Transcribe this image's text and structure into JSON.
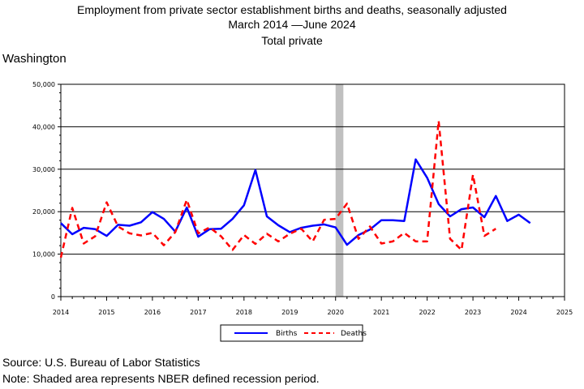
{
  "title": {
    "line1": "Employment from private sector establishment births and deaths, seasonally adjusted",
    "line2": "March 2014 —June 2024",
    "line3": "Total private"
  },
  "region": "Washington",
  "source": "Source: U.S. Bureau of Labor Statistics",
  "note": "Note: Shaded area represents NBER defined recession period.",
  "chart_data": {
    "type": "line",
    "ylim": [
      0,
      50000
    ],
    "xlim": [
      2014,
      2025
    ],
    "yticks": [
      0,
      10000,
      20000,
      30000,
      40000,
      50000
    ],
    "ytick_labels": [
      "0",
      "10,000",
      "20,000",
      "30,000",
      "40,000",
      "50,000"
    ],
    "xticks": [
      2014,
      2015,
      2016,
      2017,
      2018,
      2019,
      2020,
      2021,
      2022,
      2023,
      2024,
      2025
    ],
    "xtick_labels": [
      "2014",
      "2015",
      "2016",
      "2017",
      "2018",
      "2019",
      "2020",
      "2021",
      "2022",
      "2023",
      "2024",
      "2025"
    ],
    "grid": "horizontal",
    "recession": [
      2020.0,
      2020.17
    ],
    "legend_position": "bottom-center",
    "series": [
      {
        "name": "Births",
        "color": "#0000ff",
        "style": "solid",
        "x": [
          2014.0,
          2014.25,
          2014.5,
          2014.75,
          2015.0,
          2015.25,
          2015.5,
          2015.75,
          2016.0,
          2016.25,
          2016.5,
          2016.75,
          2017.0,
          2017.25,
          2017.5,
          2017.75,
          2018.0,
          2018.25,
          2018.5,
          2018.75,
          2019.0,
          2019.25,
          2019.5,
          2019.75,
          2020.0,
          2020.25,
          2020.5,
          2020.75,
          2021.0,
          2021.25,
          2021.5,
          2021.75,
          2022.0,
          2022.25,
          2022.5,
          2022.75,
          2023.0,
          2023.25,
          2023.5,
          2023.75,
          2024.0,
          2024.25
        ],
        "values": [
          17300,
          14700,
          16200,
          15900,
          14300,
          16900,
          16700,
          17500,
          19900,
          18300,
          15300,
          21000,
          14100,
          15900,
          16000,
          18300,
          21500,
          29800,
          18900,
          16800,
          15200,
          16200,
          16700,
          17000,
          16300,
          12200,
          14500,
          15800,
          18000,
          18000,
          17800,
          32300,
          28000,
          21800,
          18900,
          20600,
          21000,
          18700,
          23700,
          17800,
          19300,
          17300
        ]
      },
      {
        "name": "Deaths",
        "color": "#ff0000",
        "style": "dashed",
        "x": [
          2014.0,
          2014.25,
          2014.5,
          2014.75,
          2015.0,
          2015.25,
          2015.5,
          2015.75,
          2016.0,
          2016.25,
          2016.5,
          2016.75,
          2017.0,
          2017.25,
          2017.5,
          2017.75,
          2018.0,
          2018.25,
          2018.5,
          2018.75,
          2019.0,
          2019.25,
          2019.5,
          2019.75,
          2020.0,
          2020.25,
          2020.5,
          2020.75,
          2021.0,
          2021.25,
          2021.5,
          2021.75,
          2022.0,
          2022.25,
          2022.5,
          2022.75,
          2023.0,
          2023.25,
          2023.5
        ],
        "values": [
          9200,
          20900,
          12500,
          14200,
          22200,
          16500,
          14900,
          14400,
          15000,
          12100,
          15200,
          22800,
          14900,
          16300,
          14200,
          11000,
          14500,
          12400,
          14800,
          13000,
          14800,
          16000,
          13000,
          18100,
          18300,
          21900,
          13600,
          16500,
          12500,
          13000,
          15000,
          13000,
          13000,
          41400,
          13600,
          11000,
          28700,
          14300,
          16000
        ]
      }
    ]
  }
}
